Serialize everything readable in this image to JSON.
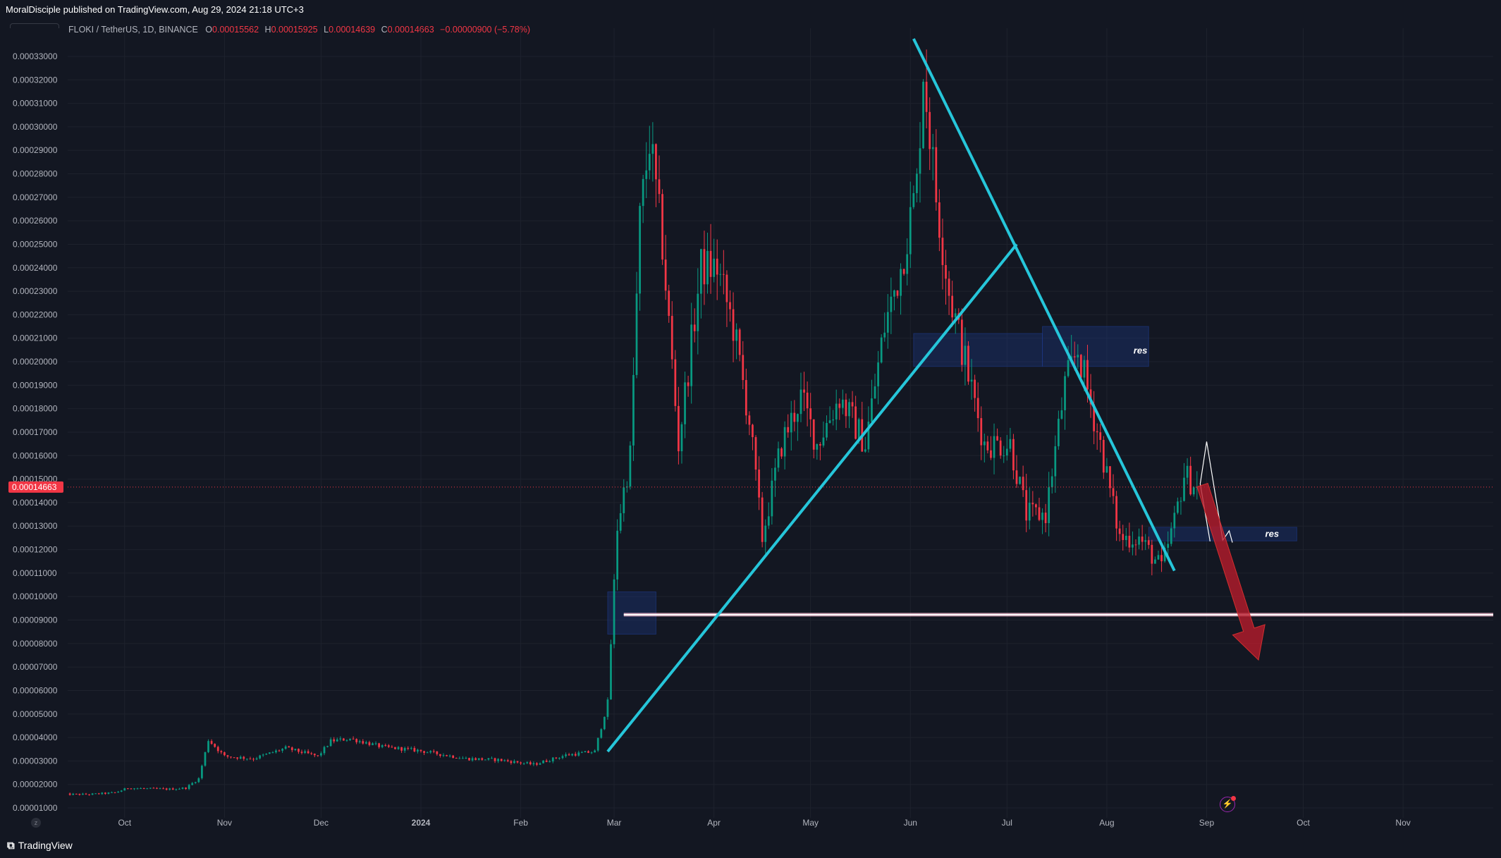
{
  "header": {
    "publisher": "MoralDisciple published on TradingView.com, Aug 29, 2024 21:18 UTC+3",
    "currency": "USDT"
  },
  "legend": {
    "symbol": "FLOKI / TetherUS, 1D, BINANCE",
    "o_key": "O",
    "o_val": "0.00015562",
    "h_key": "H",
    "h_val": "0.00015925",
    "l_key": "L",
    "l_val": "0.00014639",
    "c_key": "C",
    "c_val": "0.00014663",
    "change": "−0.00000900 (−5.78%)"
  },
  "footer": {
    "brand": "TradingView"
  },
  "colors": {
    "background": "#131722",
    "grid": "#1e222d",
    "up": "#089981",
    "down": "#f23645",
    "trendline": "#26c6da",
    "support_line": "#ffffff",
    "support_glow": "#f8bbd0",
    "zone": "#1e3a8a",
    "arrow": "#b71c2c",
    "price_badge": "#f23645"
  },
  "icons": {
    "flash": "flash-icon",
    "logo": "tradingview-logo-icon"
  },
  "chart_data": {
    "type": "candlestick",
    "y_ticks": [
      "0.00033000",
      "0.00032000",
      "0.00031000",
      "0.00030000",
      "0.00029000",
      "0.00028000",
      "0.00027000",
      "0.00026000",
      "0.00025000",
      "0.00024000",
      "0.00023000",
      "0.00022000",
      "0.00021000",
      "0.00020000",
      "0.00019000",
      "0.00018000",
      "0.00017000",
      "0.00016000",
      "0.00015000",
      "0.00014000",
      "0.00013000",
      "0.00012000",
      "0.00011000",
      "0.00010000",
      "0.00009000",
      "0.00008000",
      "0.00007000",
      "0.00006000",
      "0.00005000",
      "0.00004000",
      "0.00003000",
      "0.00002000",
      "0.00001000"
    ],
    "x_ticks": [
      {
        "label": "Oct",
        "date": "2023-10-01"
      },
      {
        "label": "Nov",
        "date": "2023-11-01"
      },
      {
        "label": "Dec",
        "date": "2023-12-01"
      },
      {
        "label": "2024",
        "date": "2024-01-01"
      },
      {
        "label": "Feb",
        "date": "2024-02-01"
      },
      {
        "label": "Mar",
        "date": "2024-03-01"
      },
      {
        "label": "Apr",
        "date": "2024-04-01"
      },
      {
        "label": "May",
        "date": "2024-05-01"
      },
      {
        "label": "Jun",
        "date": "2024-06-01"
      },
      {
        "label": "Jul",
        "date": "2024-07-01"
      },
      {
        "label": "Aug",
        "date": "2024-08-01"
      },
      {
        "label": "Sep",
        "date": "2024-09-01"
      },
      {
        "label": "Oct",
        "date": "2024-10-01"
      },
      {
        "label": "Nov",
        "date": "2024-11-01"
      }
    ],
    "ylim": [
      5.8e-06,
      0.0003375
    ],
    "xlim": [
      "2023-09-12",
      "2024-11-29"
    ],
    "last_price": "0.00014663",
    "close_series": [
      [
        "2023-09-12",
        1.58e-05
      ],
      [
        "2023-09-20",
        1.58e-05
      ],
      [
        "2023-09-28",
        1.65e-05
      ],
      [
        "2023-10-02",
        1.85e-05
      ],
      [
        "2023-10-08",
        1.82e-05
      ],
      [
        "2023-10-15",
        1.8e-05
      ],
      [
        "2023-10-20",
        1.85e-05
      ],
      [
        "2023-10-24",
        2.25e-05
      ],
      [
        "2023-10-27",
        3.9e-05
      ],
      [
        "2023-11-01",
        3.2e-05
      ],
      [
        "2023-11-10",
        3.1e-05
      ],
      [
        "2023-11-20",
        3.55e-05
      ],
      [
        "2023-11-30",
        3.2e-05
      ],
      [
        "2023-12-04",
        3.85e-05
      ],
      [
        "2023-12-10",
        3.95e-05
      ],
      [
        "2023-12-20",
        3.6e-05
      ],
      [
        "2023-12-31",
        3.45e-05
      ],
      [
        "2024-01-15",
        3.1e-05
      ],
      [
        "2024-01-25",
        3.05e-05
      ],
      [
        "2024-02-05",
        2.85e-05
      ],
      [
        "2024-02-15",
        3.25e-05
      ],
      [
        "2024-02-24",
        3.4e-05
      ],
      [
        "2024-02-28",
        5.5e-05
      ],
      [
        "2024-03-02",
        0.00013
      ],
      [
        "2024-03-06",
        0.00016
      ],
      [
        "2024-03-09",
        0.00026
      ],
      [
        "2024-03-12",
        0.000295
      ],
      [
        "2024-03-16",
        0.00025
      ],
      [
        "2024-03-21",
        0.000165
      ],
      [
        "2024-03-28",
        0.00024
      ],
      [
        "2024-04-02",
        0.00024
      ],
      [
        "2024-04-07",
        0.000215
      ],
      [
        "2024-04-12",
        0.000175
      ],
      [
        "2024-04-16",
        0.000125
      ],
      [
        "2024-04-22",
        0.000165
      ],
      [
        "2024-04-28",
        0.000185
      ],
      [
        "2024-05-03",
        0.000165
      ],
      [
        "2024-05-10",
        0.000185
      ],
      [
        "2024-05-18",
        0.000165
      ],
      [
        "2024-05-24",
        0.000215
      ],
      [
        "2024-05-29",
        0.00024
      ],
      [
        "2024-06-03",
        0.000275
      ],
      [
        "2024-06-05",
        0.000325
      ],
      [
        "2024-06-09",
        0.00027
      ],
      [
        "2024-06-13",
        0.00023
      ],
      [
        "2024-06-18",
        0.0002
      ],
      [
        "2024-06-24",
        0.000165
      ],
      [
        "2024-07-02",
        0.000165
      ],
      [
        "2024-07-07",
        0.000135
      ],
      [
        "2024-07-13",
        0.000135
      ],
      [
        "2024-07-19",
        0.00019
      ],
      [
        "2024-07-23",
        0.000205
      ],
      [
        "2024-07-30",
        0.000165
      ],
      [
        "2024-08-05",
        0.000125
      ],
      [
        "2024-08-11",
        0.000125
      ],
      [
        "2024-08-18",
        0.000112
      ],
      [
        "2024-08-22",
        0.000132
      ],
      [
        "2024-08-25",
        0.000152
      ],
      [
        "2024-08-29",
        0.00014663
      ]
    ],
    "drawings": {
      "ascending_trendline": [
        [
          "2024-02-28",
          3.4e-05
        ],
        [
          "2024-07-04",
          0.00025
        ]
      ],
      "descending_trendline": [
        [
          "2024-06-02",
          0.0003375
        ],
        [
          "2024-08-22",
          0.000111
        ]
      ],
      "support_line": [
        [
          "2024-03-04",
          9.23e-05
        ],
        [
          "2024-11-29",
          9.23e-05
        ]
      ],
      "zones": [
        {
          "start": "2024-02-28",
          "end": "2024-03-14",
          "low": 8.4e-05,
          "high": 0.000102
        },
        {
          "start": "2024-06-02",
          "end": "2024-07-12",
          "low": 0.000198,
          "high": 0.000212
        },
        {
          "start": "2024-07-12",
          "end": "2024-08-14",
          "low": 0.000198,
          "high": 0.000215
        },
        {
          "start": "2024-08-14",
          "end": "2024-09-29",
          "low": 0.0001237,
          "high": 0.0001295
        }
      ],
      "zone_labels": [
        "res",
        "res"
      ],
      "projected_arrow": [
        [
          "2024-09-01",
          0.0001475
        ],
        [
          "2024-09-16",
          7.3e-05
        ]
      ]
    }
  }
}
